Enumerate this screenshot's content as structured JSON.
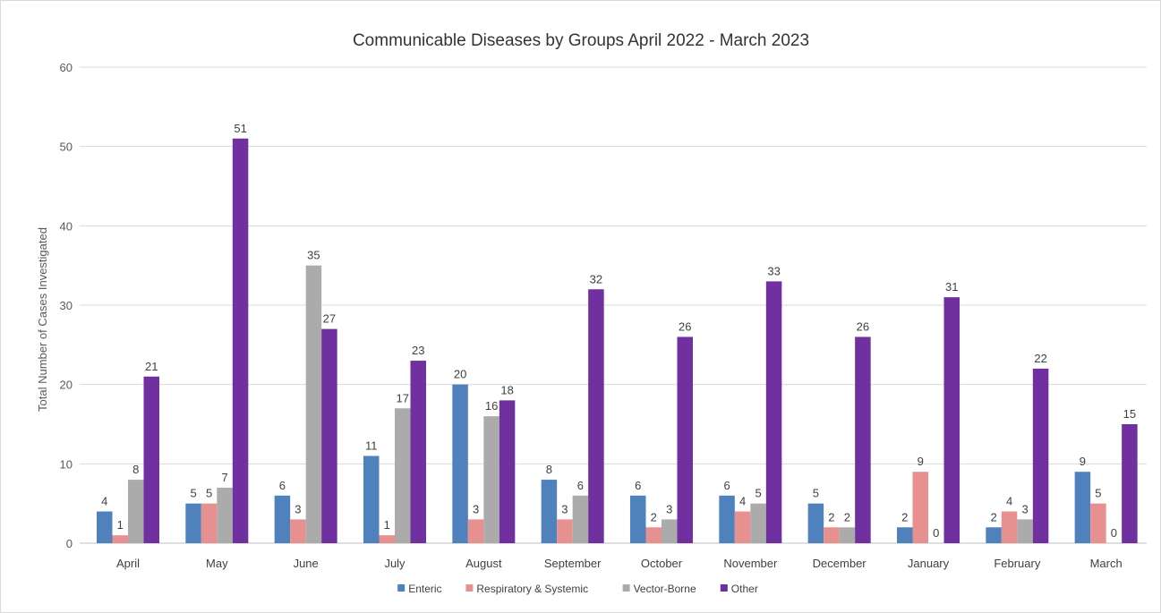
{
  "chart_data": {
    "type": "bar",
    "title": "Communicable Diseases by Groups April 2022 - March 2023",
    "xlabel": "",
    "ylabel": "Total Number of Cases Investigated",
    "ylim": [
      0,
      60
    ],
    "yticks": [
      0,
      10,
      20,
      30,
      40,
      50,
      60
    ],
    "grid": true,
    "legend_position": "bottom",
    "categories": [
      "April",
      "May",
      "June",
      "July",
      "August",
      "September",
      "October",
      "November",
      "December",
      "January",
      "February",
      "March"
    ],
    "series": [
      {
        "name": "Enteric",
        "color": "#4f81bd",
        "values": [
          4,
          5,
          6,
          11,
          20,
          8,
          6,
          6,
          5,
          2,
          2,
          9
        ]
      },
      {
        "name": "Respiratory & Systemic",
        "color": "#e6918f",
        "values": [
          1,
          5,
          3,
          1,
          3,
          3,
          2,
          4,
          2,
          9,
          4,
          5
        ]
      },
      {
        "name": "Vector-Borne",
        "color": "#ababab",
        "values": [
          8,
          7,
          35,
          17,
          16,
          6,
          3,
          5,
          2,
          0,
          3,
          0
        ]
      },
      {
        "name": "Other",
        "color": "#7030a0",
        "values": [
          21,
          51,
          27,
          23,
          18,
          32,
          26,
          33,
          26,
          31,
          22,
          15
        ]
      }
    ]
  }
}
